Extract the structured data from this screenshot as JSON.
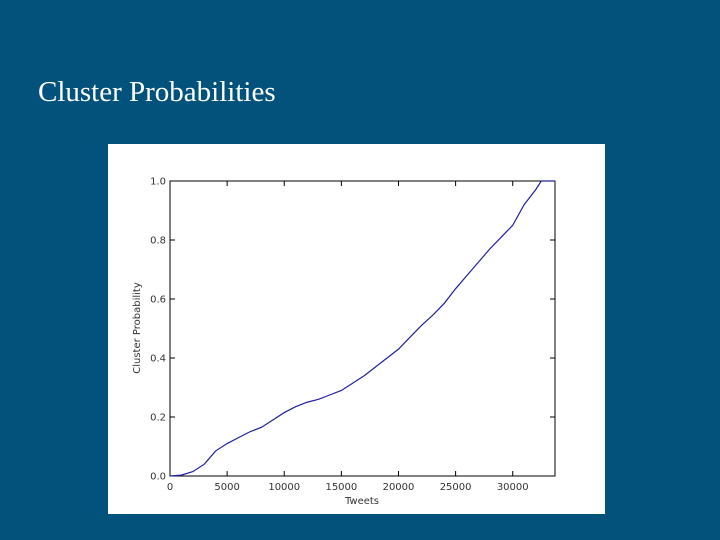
{
  "title": "Cluster Probabilities",
  "chart_data": {
    "type": "line",
    "x_label": "Tweets",
    "y_label": "Cluster Probability",
    "x": [
      0,
      1000,
      2000,
      3000,
      4000,
      5000,
      6000,
      7000,
      8000,
      9000,
      10000,
      11000,
      12000,
      13000,
      14000,
      15000,
      16000,
      17000,
      18000,
      19000,
      20000,
      21000,
      22000,
      23000,
      24000,
      25000,
      26000,
      27000,
      28000,
      29000,
      30000,
      31000,
      32000,
      32500,
      33700
    ],
    "series": [
      {
        "color": "#2020a0",
        "values": [
          0,
          0.003,
          0.015,
          0.04,
          0.085,
          0.11,
          0.13,
          0.15,
          0.165,
          0.19,
          0.215,
          0.235,
          0.25,
          0.26,
          0.275,
          0.29,
          0.315,
          0.34,
          0.37,
          0.4,
          0.43,
          0.47,
          0.51,
          0.545,
          0.585,
          0.635,
          0.68,
          0.725,
          0.77,
          0.81,
          0.85,
          0.92,
          0.97,
          1.0,
          1.0
        ]
      }
    ],
    "xlim": [
      0,
      33700
    ],
    "ylim": [
      0,
      1.0
    ],
    "xticks": [
      0,
      5000,
      10000,
      15000,
      20000,
      25000,
      30000
    ],
    "yticks": [
      {
        "value": 0,
        "label": "0.0"
      },
      0.2,
      0.4,
      0.6,
      0.8,
      {
        "value": 1,
        "label": "1.0"
      }
    ]
  }
}
